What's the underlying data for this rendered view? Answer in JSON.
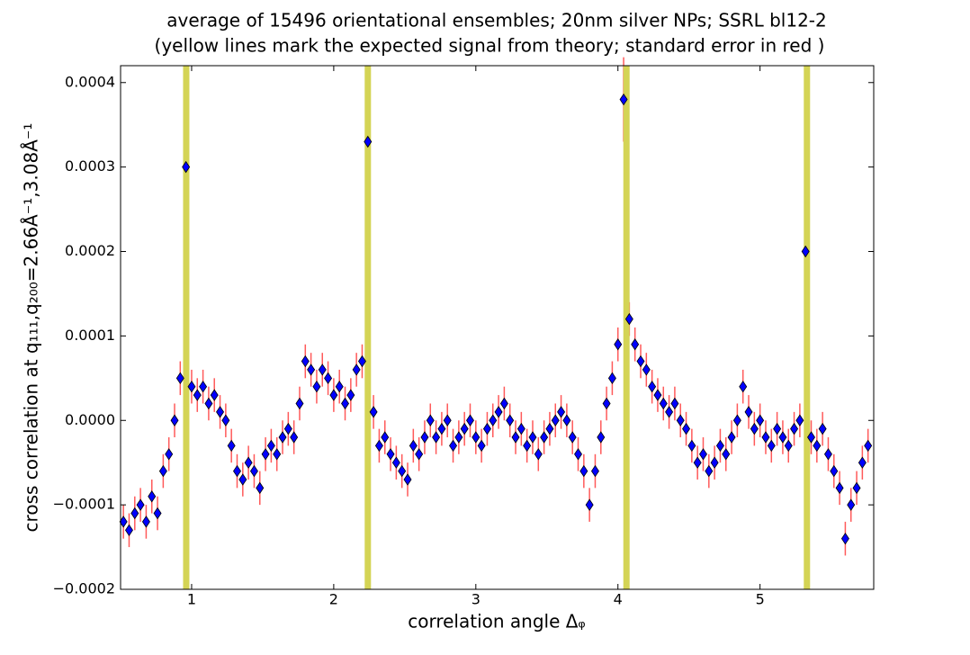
{
  "chart_data": {
    "type": "scatter",
    "title": "average of 15496 orientational ensembles; 20nm silver NPs; SSRL bl12-2",
    "subtitle": "(yellow lines mark the expected signal from theory; standard error in red )",
    "x_label": "correlation angle Δᵩ",
    "y_label": "cross correlation at q₁₁₁,q₂₀₀=2.66Å⁻¹,3.08Å⁻¹",
    "x": [
      0.52,
      0.56,
      0.6,
      0.64,
      0.68,
      0.72,
      0.76,
      0.8,
      0.84,
      0.88,
      0.92,
      0.96,
      1.0,
      1.04,
      1.08,
      1.12,
      1.16,
      1.2,
      1.24,
      1.28,
      1.32,
      1.36,
      1.4,
      1.44,
      1.48,
      1.52,
      1.56,
      1.6,
      1.64,
      1.68,
      1.72,
      1.76,
      1.8,
      1.84,
      1.88,
      1.92,
      1.96,
      2.0,
      2.04,
      2.08,
      2.12,
      2.16,
      2.2,
      2.24,
      2.28,
      2.32,
      2.36,
      2.4,
      2.44,
      2.48,
      2.52,
      2.56,
      2.6,
      2.64,
      2.68,
      2.72,
      2.76,
      2.8,
      2.84,
      2.88,
      2.92,
      2.96,
      3.0,
      3.04,
      3.08,
      3.12,
      3.16,
      3.2,
      3.24,
      3.28,
      3.32,
      3.36,
      3.4,
      3.44,
      3.48,
      3.52,
      3.56,
      3.6,
      3.64,
      3.68,
      3.72,
      3.76,
      3.8,
      3.84,
      3.88,
      3.92,
      3.96,
      4.0,
      4.04,
      4.08,
      4.12,
      4.16,
      4.2,
      4.24,
      4.28,
      4.32,
      4.36,
      4.4,
      4.44,
      4.48,
      4.52,
      4.56,
      4.6,
      4.64,
      4.68,
      4.72,
      4.76,
      4.8,
      4.84,
      4.88,
      4.92,
      4.96,
      5.0,
      5.04,
      5.08,
      5.12,
      5.16,
      5.2,
      5.24,
      5.28,
      5.32,
      5.36,
      5.4,
      5.44,
      5.48,
      5.52,
      5.56,
      5.6,
      5.64,
      5.68,
      5.72,
      5.76
    ],
    "values": [
      -0.00012,
      -0.00013,
      -0.00011,
      -0.0001,
      -0.00012,
      -9e-05,
      -0.00011,
      -6e-05,
      -4e-05,
      0,
      5e-05,
      0.0003,
      4e-05,
      3e-05,
      4e-05,
      2e-05,
      3e-05,
      1e-05,
      0,
      -3e-05,
      -6e-05,
      -7e-05,
      -5e-05,
      -6e-05,
      -8e-05,
      -4e-05,
      -3e-05,
      -4e-05,
      -2e-05,
      -1e-05,
      -2e-05,
      2e-05,
      7e-05,
      6e-05,
      4e-05,
      6e-05,
      5e-05,
      3e-05,
      4e-05,
      2e-05,
      3e-05,
      6e-05,
      7e-05,
      0.00033,
      1e-05,
      -3e-05,
      -2e-05,
      -4e-05,
      -5e-05,
      -6e-05,
      -7e-05,
      -3e-05,
      -4e-05,
      -2e-05,
      0,
      -2e-05,
      -1e-05,
      0,
      -3e-05,
      -2e-05,
      -1e-05,
      0,
      -2e-05,
      -3e-05,
      -1e-05,
      0,
      1e-05,
      2e-05,
      0,
      -2e-05,
      -1e-05,
      -3e-05,
      -2e-05,
      -4e-05,
      -2e-05,
      -1e-05,
      0,
      1e-05,
      0,
      -2e-05,
      -4e-05,
      -6e-05,
      -0.0001,
      -6e-05,
      -2e-05,
      2e-05,
      5e-05,
      9e-05,
      0.00038,
      0.00012,
      9e-05,
      7e-05,
      6e-05,
      4e-05,
      3e-05,
      2e-05,
      1e-05,
      2e-05,
      0,
      -1e-05,
      -3e-05,
      -5e-05,
      -4e-05,
      -6e-05,
      -5e-05,
      -3e-05,
      -4e-05,
      -2e-05,
      0,
      4e-05,
      1e-05,
      -1e-05,
      0,
      -2e-05,
      -3e-05,
      -1e-05,
      -2e-05,
      -3e-05,
      -1e-05,
      0,
      0.0002,
      -2e-05,
      -3e-05,
      -1e-05,
      -4e-05,
      -6e-05,
      -8e-05,
      -0.00014,
      -0.0001,
      -8e-05,
      -5e-05,
      -3e-05
    ],
    "errors": [
      2e-05,
      2e-05,
      2e-05,
      2e-05,
      2e-05,
      2e-05,
      2e-05,
      2e-05,
      2e-05,
      2e-05,
      2e-05,
      5e-05,
      2e-05,
      2e-05,
      2e-05,
      2e-05,
      2e-05,
      2e-05,
      2e-05,
      2e-05,
      2e-05,
      2e-05,
      2e-05,
      2e-05,
      2e-05,
      2e-05,
      2e-05,
      2e-05,
      2e-05,
      2e-05,
      2e-05,
      2e-05,
      2e-05,
      2e-05,
      2e-05,
      2e-05,
      2e-05,
      2e-05,
      2e-05,
      2e-05,
      2e-05,
      2e-05,
      2e-05,
      5e-05,
      2e-05,
      2e-05,
      2e-05,
      2e-05,
      2e-05,
      2e-05,
      2e-05,
      2e-05,
      2e-05,
      2e-05,
      2e-05,
      2e-05,
      2e-05,
      2e-05,
      2e-05,
      2e-05,
      2e-05,
      2e-05,
      2e-05,
      2e-05,
      2e-05,
      2e-05,
      2e-05,
      2e-05,
      2e-05,
      2e-05,
      2e-05,
      2e-05,
      2e-05,
      2e-05,
      2e-05,
      2e-05,
      2e-05,
      2e-05,
      2e-05,
      2e-05,
      2e-05,
      2e-05,
      2e-05,
      2e-05,
      2e-05,
      2e-05,
      2e-05,
      2e-05,
      5e-05,
      2e-05,
      2e-05,
      2e-05,
      2e-05,
      2e-05,
      2e-05,
      2e-05,
      2e-05,
      2e-05,
      2e-05,
      2e-05,
      2e-05,
      2e-05,
      2e-05,
      2e-05,
      2e-05,
      2e-05,
      2e-05,
      2e-05,
      2e-05,
      2e-05,
      2e-05,
      2e-05,
      2e-05,
      2e-05,
      2e-05,
      2e-05,
      2e-05,
      2e-05,
      2e-05,
      2e-05,
      5e-05,
      2e-05,
      2e-05,
      2e-05,
      2e-05,
      2e-05,
      2e-05,
      2e-05,
      2e-05,
      2e-05,
      2e-05,
      2e-05
    ],
    "color": "#0000ff",
    "error_color": "#ff5a5a",
    "vlines": [
      0.962,
      2.24,
      4.06,
      5.33
    ],
    "vline_color": "#d4d455",
    "xlim": [
      0.5,
      5.8
    ],
    "ylim": [
      -0.0002,
      0.00042
    ],
    "xticks": [
      1,
      2,
      3,
      4,
      5
    ],
    "yticks": [
      {
        "value": -0.0002,
        "label": "−0.0002"
      },
      {
        "value": -0.0001,
        "label": "−0.0001"
      },
      {
        "value": 0,
        "label": "0.0000"
      },
      0.0001,
      0.0002,
      0.0003,
      0.0004
    ]
  }
}
